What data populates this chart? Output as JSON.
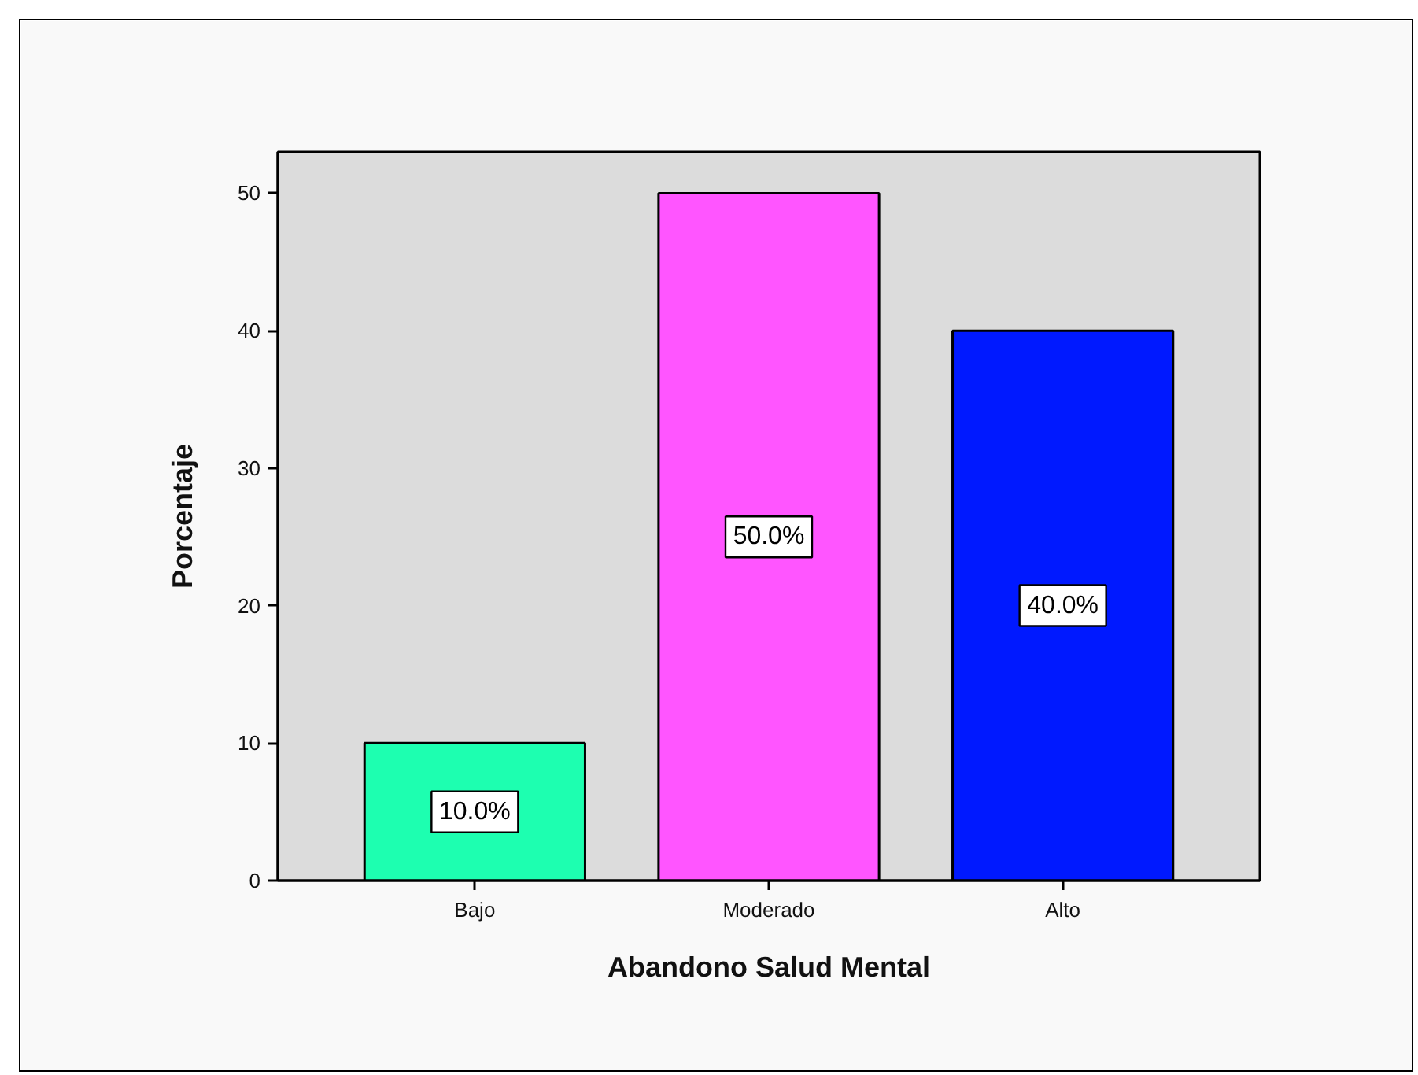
{
  "chart_data": {
    "type": "bar",
    "xlabel": "Abandono Salud Mental",
    "ylabel": "Porcentaje",
    "categories": [
      "Bajo",
      "Moderado",
      "Alto"
    ],
    "values": [
      10,
      50,
      40
    ],
    "colors": [
      "#1dffb0",
      "#ff55ff",
      "#0019ff"
    ],
    "value_labels": [
      "10.0%",
      "50.0%",
      "40.0%"
    ],
    "ylim": [
      0,
      53
    ],
    "yticks": [
      0,
      10,
      20,
      30,
      40,
      50
    ],
    "grid": false
  }
}
